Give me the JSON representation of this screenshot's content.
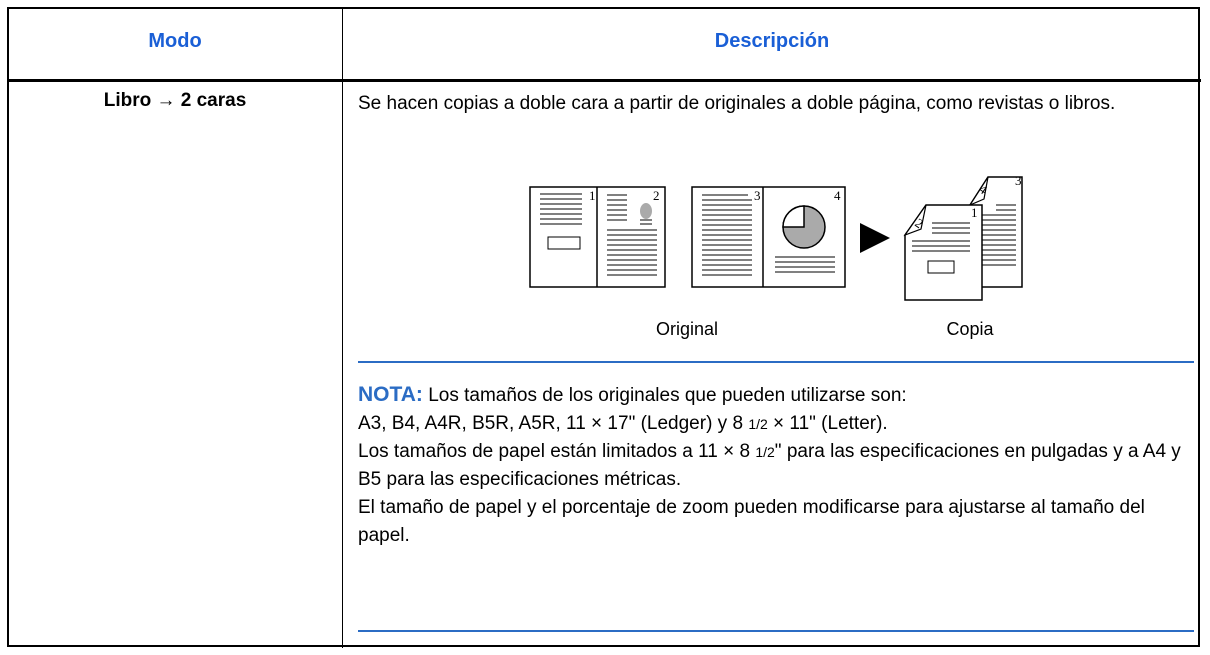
{
  "table": {
    "headers": [
      "Modo",
      "Descripción"
    ],
    "row": {
      "mode": "Libro → 2 caras",
      "description": "Se hacen copias a doble cara a partir de originales a doble página, como revistas o libros.",
      "figure": {
        "original_page_numbers": [
          "1",
          "2",
          "3",
          "4"
        ],
        "copy_page_numbers": [
          "1",
          "2",
          "3",
          "4"
        ],
        "original_label": "Original",
        "copy_label": "Copia"
      },
      "note": {
        "label": "NOTA:",
        "paragraphs": [
          [
            {
              "text": " Los tamaños de los originales que pueden utilizarse son:"
            }
          ],
          [
            {
              "text": "A3, B4, A4R, B5R, A5R, 11 × 17\" (Ledger) y 8 "
            },
            {
              "fraction": "1/2"
            },
            {
              "text": " × 11\" (Letter)."
            }
          ],
          [
            {
              "text": "Los tamaños de papel están limitados a 11 × 8 "
            },
            {
              "fraction": "1/2"
            },
            {
              "text": "\" para las especificaciones en pulgadas y a A4 y B5 para las especificaciones métricas."
            }
          ],
          [
            {
              "text": "El tamaño de papel y el porcentaje de zoom pueden modificarse para ajustarse al tamaño del papel."
            }
          ]
        ]
      }
    }
  }
}
